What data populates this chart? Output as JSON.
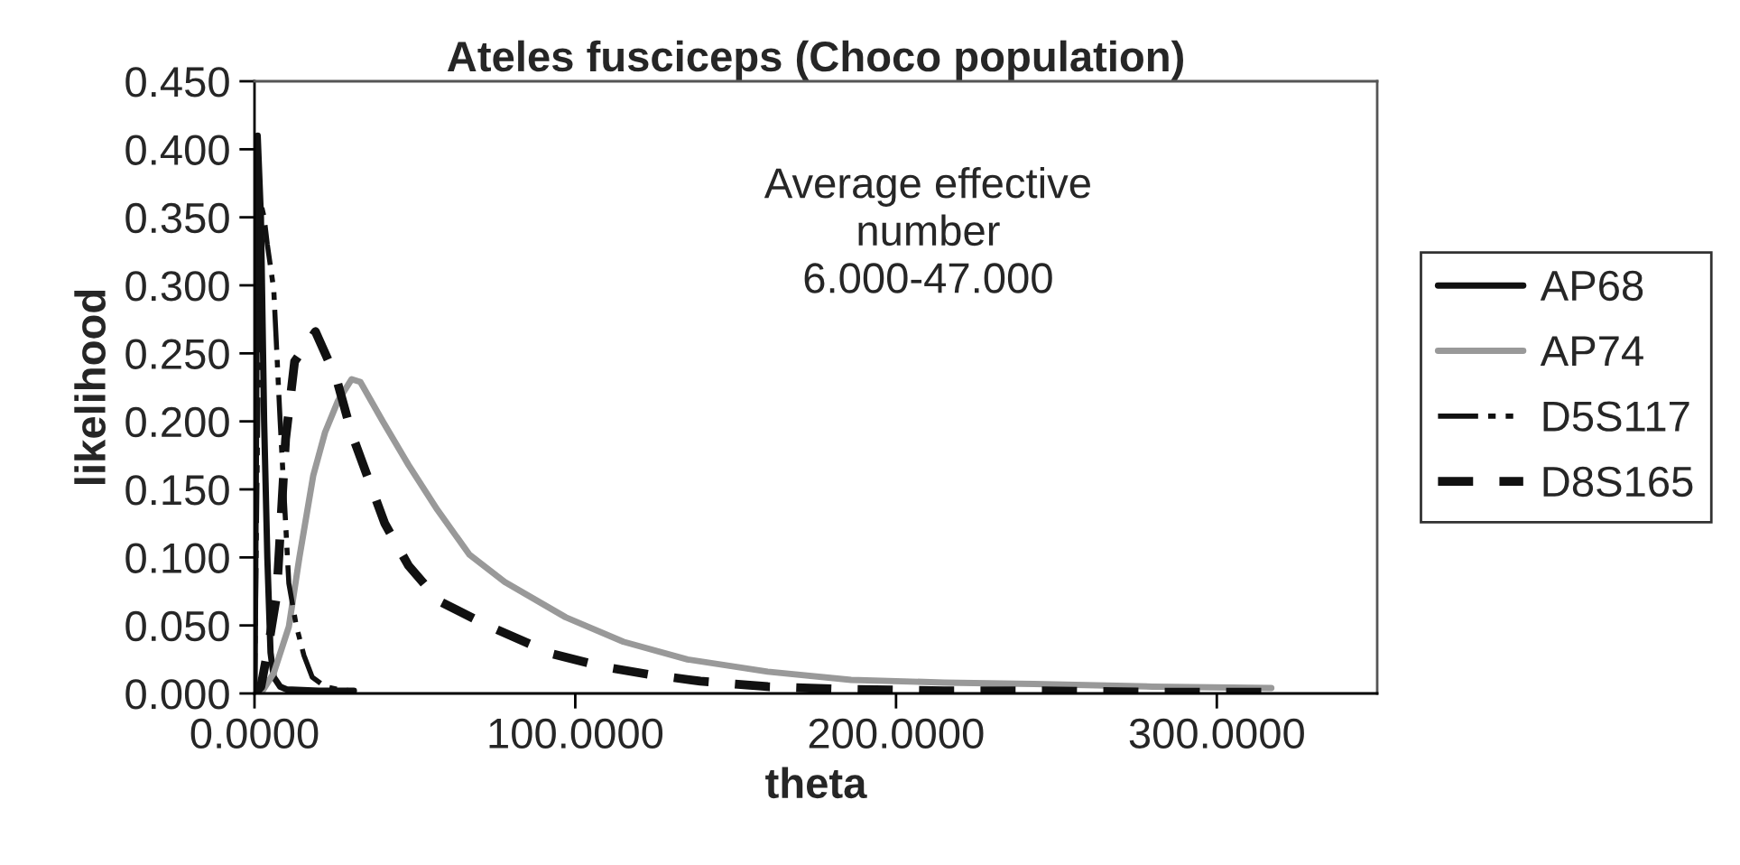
{
  "chart_data": {
    "type": "line",
    "title": "Ateles fusciceps (Choco population)",
    "xlabel": "theta",
    "ylabel": "likelihood",
    "annotations": [
      "Average effective\nnumber\n6.000-47.000"
    ],
    "xlim": [
      0,
      350
    ],
    "ylim": [
      0,
      0.45
    ],
    "xticks": [
      {
        "value": 0,
        "label": "0.0000"
      },
      {
        "value": 100,
        "label": "100.0000"
      },
      {
        "value": 200,
        "label": "200.0000"
      },
      {
        "value": 300,
        "label": "300.0000"
      }
    ],
    "yticks": [
      {
        "value": 0,
        "label": "0.000"
      },
      {
        "value": 0.05,
        "label": "0.050"
      },
      {
        "value": 0.1,
        "label": "0.100"
      },
      {
        "value": 0.15,
        "label": "0.150"
      },
      {
        "value": 0.2,
        "label": "0.200"
      },
      {
        "value": 0.25,
        "label": "0.250"
      },
      {
        "value": 0.3,
        "label": "0.300"
      },
      {
        "value": 0.35,
        "label": "0.350"
      },
      {
        "value": 0.4,
        "label": "0.400"
      },
      {
        "value": 0.45,
        "label": "0.450"
      }
    ],
    "grid": false,
    "legend": "right",
    "marker": "none",
    "series": [
      {
        "name": "AP68",
        "color": "#111111",
        "line_style": "solid",
        "x": [
          0,
          0.5,
          1,
          2,
          3,
          4,
          5,
          6,
          8,
          10,
          20,
          31
        ],
        "values": [
          0,
          0.2,
          0.41,
          0.35,
          0.2,
          0.1,
          0.03,
          0.012,
          0.005,
          0.003,
          0.002,
          0.002
        ]
      },
      {
        "name": "AP74",
        "color": "#999999",
        "line_style": "solid",
        "x": [
          2,
          6,
          10.7,
          14,
          18.3,
          22,
          26,
          30.3,
          33,
          40,
          48,
          57,
          67,
          78,
          97,
          115,
          135,
          160,
          186,
          215,
          243,
          280,
          317
        ],
        "values": [
          0,
          0.015,
          0.049,
          0.1,
          0.16,
          0.192,
          0.215,
          0.231,
          0.229,
          0.2,
          0.168,
          0.135,
          0.102,
          0.082,
          0.056,
          0.038,
          0.025,
          0.016,
          0.01,
          0.008,
          0.007,
          0.005,
          0.004
        ]
      },
      {
        "name": "D5S117",
        "color": "#111111",
        "line_style": "dashdot",
        "x": [
          0,
          1,
          2,
          3,
          4,
          6,
          8,
          10.7,
          13,
          15.4,
          18,
          22,
          26,
          30
        ],
        "values": [
          0,
          0.2,
          0.36,
          0.35,
          0.33,
          0.297,
          0.2,
          0.081,
          0.05,
          0.028,
          0.012,
          0.005,
          0.003,
          0.002
        ]
      },
      {
        "name": "D8S165",
        "color": "#111111",
        "line_style": "dashed",
        "x": [
          0,
          2,
          4,
          6.9,
          9.7,
          12.5,
          19,
          25.6,
          30.3,
          40.6,
          48,
          57.5,
          72.6,
          93,
          108,
          123,
          139,
          160,
          184,
          215,
          243,
          280,
          317
        ],
        "values": [
          0,
          0.005,
          0.03,
          0.072,
          0.187,
          0.244,
          0.266,
          0.231,
          0.191,
          0.125,
          0.094,
          0.068,
          0.05,
          0.029,
          0.02,
          0.014,
          0.009,
          0.005,
          0.003,
          0.002,
          0.002,
          0.001,
          0.001
        ]
      }
    ]
  }
}
